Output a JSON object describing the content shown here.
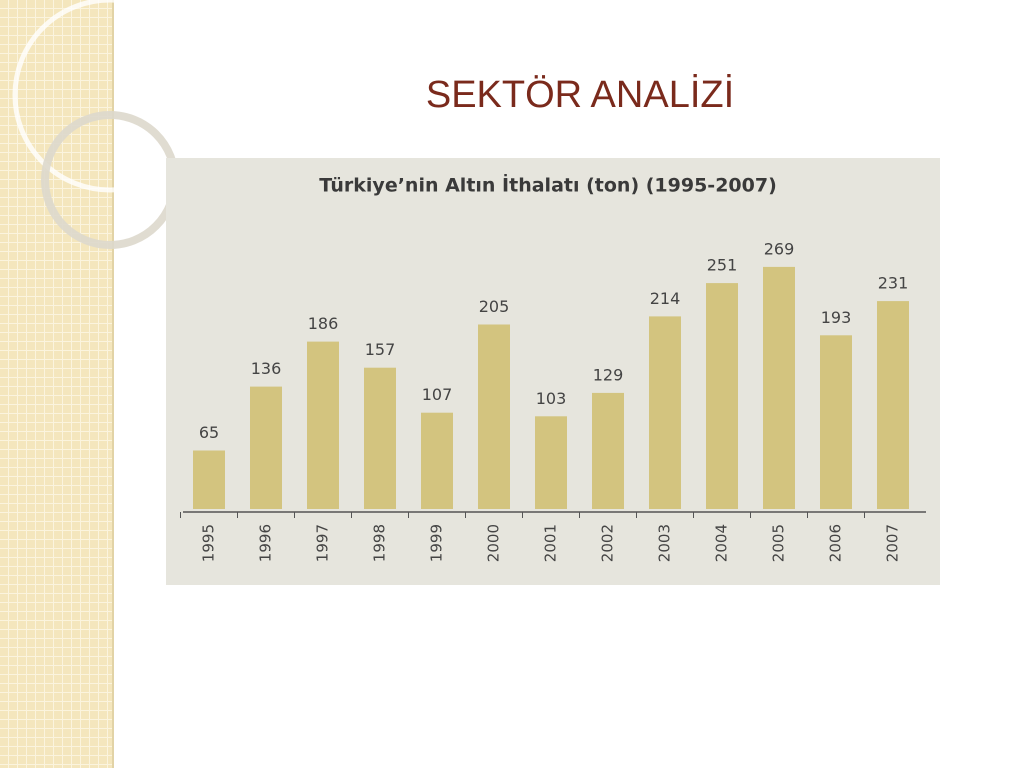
{
  "slide_title": "SEKTÖR  ANALİZİ",
  "chart_data": {
    "type": "bar",
    "title": "Türkiye’nin Altın İthalatı (ton) (1995-2007)",
    "categories": [
      "1995",
      "1996",
      "1997",
      "1998",
      "1999",
      "2000",
      "2001",
      "2002",
      "2003",
      "2004",
      "2005",
      "2006",
      "2007"
    ],
    "values": [
      65,
      136,
      186,
      157,
      107,
      205,
      103,
      129,
      214,
      251,
      269,
      193,
      231
    ],
    "color": "#d3c47f"
  }
}
